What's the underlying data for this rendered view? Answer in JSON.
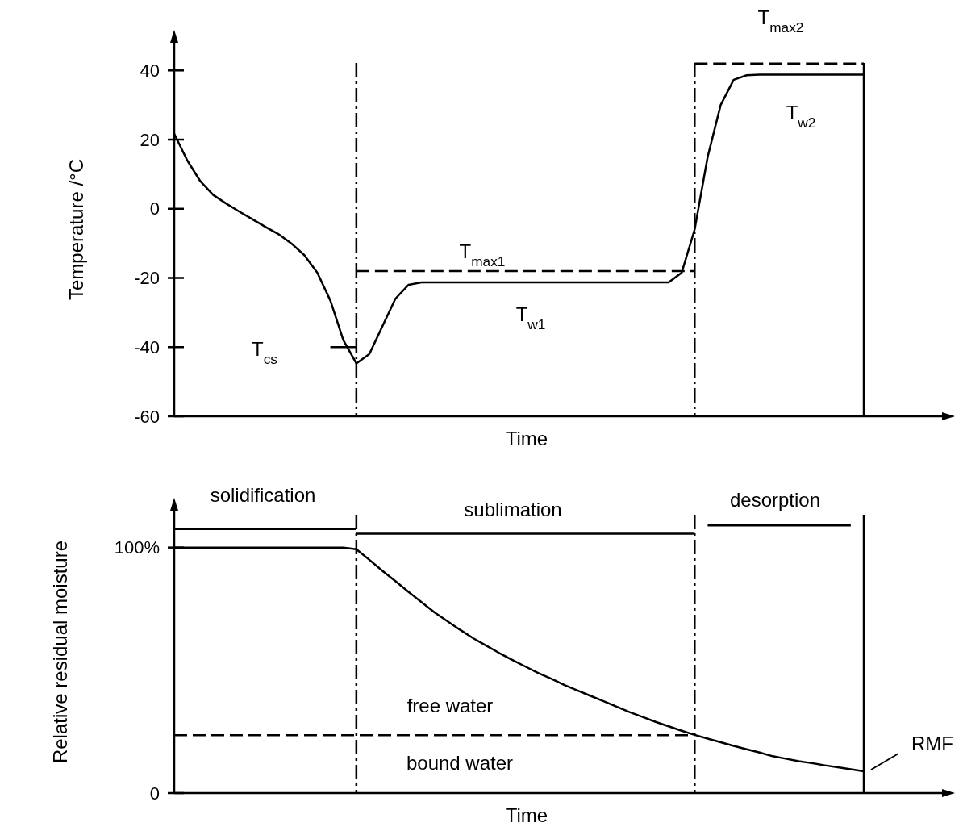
{
  "chart_data": [
    {
      "type": "line",
      "xlabel": "Time",
      "ylabel": "Temperature /°C",
      "ylim": [
        -60,
        48
      ],
      "yticks": [
        -60,
        -40,
        -20,
        0,
        20,
        40
      ],
      "tick_labels": "y",
      "categories": [
        null,
        null,
        null,
        null,
        null,
        null,
        null,
        null,
        null,
        null,
        null,
        null,
        null,
        null,
        null,
        null,
        null,
        null,
        null,
        null,
        null,
        null,
        null,
        null,
        null,
        null,
        null,
        null,
        null,
        null,
        null,
        null,
        null,
        null,
        null,
        null,
        null,
        null,
        null,
        null,
        null,
        null,
        null,
        null,
        null,
        null,
        null,
        null,
        null,
        null,
        null,
        null,
        null,
        null
      ],
      "series": [
        {
          "color": "#000000",
          "line_style": "solid",
          "values": [
            21.7,
            14,
            8,
            4,
            1.5,
            -0.8,
            -3,
            -5.2,
            -7.3,
            -10,
            -13.4,
            -18.5,
            -26.5,
            -38,
            -44.7,
            -42,
            -34,
            -26,
            -22,
            -21.3,
            -21.3,
            -21.3,
            -21.3,
            -21.3,
            -21.3,
            -21.3,
            -21.3,
            -21.3,
            -21.3,
            -21.3,
            -21.3,
            -21.3,
            -21.3,
            -21.3,
            -21.3,
            -21.3,
            -21.3,
            -21.3,
            -21.3,
            -18.5,
            -6,
            15,
            30,
            37.3,
            38.6,
            38.8,
            38.8,
            38.8,
            38.8,
            38.8,
            38.8,
            38.8,
            38.8,
            38.8
          ]
        },
        {
          "color": "#000000",
          "line_style": "dashed",
          "values": [
            null,
            null,
            null,
            null,
            null,
            null,
            null,
            null,
            null,
            null,
            null,
            null,
            null,
            null,
            -18,
            -18,
            -18,
            -18,
            -18,
            -18,
            -18,
            -18,
            -18,
            -18,
            -18,
            -18,
            -18,
            -18,
            -18,
            -18,
            -18,
            -18,
            -18,
            -18,
            -18,
            -18,
            -18,
            -18,
            -18,
            -18,
            -18,
            null,
            null,
            null,
            null,
            null,
            null,
            null,
            null,
            null,
            null,
            null,
            null,
            null
          ]
        },
        {
          "color": "#000000",
          "line_style": "dashed",
          "values": [
            null,
            null,
            null,
            null,
            null,
            null,
            null,
            null,
            null,
            null,
            null,
            null,
            null,
            null,
            null,
            null,
            null,
            null,
            null,
            null,
            null,
            null,
            null,
            null,
            null,
            null,
            null,
            null,
            null,
            null,
            null,
            null,
            null,
            null,
            null,
            null,
            null,
            null,
            null,
            null,
            42,
            42,
            42,
            42,
            42,
            42,
            42,
            42,
            42,
            42,
            42,
            42,
            42,
            42
          ]
        },
        {
          "color": "#000000",
          "line_style": "solid",
          "values": [
            null,
            null,
            null,
            null,
            null,
            null,
            null,
            null,
            null,
            null,
            null,
            null,
            -40,
            -40,
            -40,
            null,
            null,
            null,
            null,
            null,
            null,
            null,
            null,
            null,
            null,
            null,
            null,
            null,
            null,
            null,
            null,
            null,
            null,
            null,
            null,
            null,
            null,
            null,
            null,
            null,
            null,
            null,
            null,
            null,
            null,
            null,
            null,
            null,
            null,
            null,
            null,
            null,
            null,
            null
          ]
        }
      ],
      "annotations": [
        "T$_{max1}$",
        "T$_{w1}$",
        "T$_{cs}$",
        "T$_{max2}$",
        "T$_{w2}$"
      ]
    },
    {
      "type": "line",
      "xlabel": "Time",
      "ylabel": "Relative residual moisture",
      "ylim": [
        0,
        115
      ],
      "yticks": [
        {
          "value": 0,
          "label": "0"
        },
        {
          "value": 100,
          "label": "100%"
        }
      ],
      "tick_labels": "y",
      "categories": [
        null,
        null,
        null,
        null,
        null,
        null,
        null,
        null,
        null,
        null,
        null,
        null,
        null,
        null,
        null,
        null,
        null,
        null,
        null,
        null,
        null,
        null,
        null,
        null,
        null,
        null,
        null,
        null,
        null,
        null,
        null,
        null,
        null,
        null,
        null,
        null,
        null,
        null,
        null,
        null,
        null,
        null,
        null,
        null,
        null,
        null,
        null,
        null,
        null,
        null,
        null,
        null,
        null,
        null
      ],
      "series": [
        {
          "color": "#000000",
          "line_style": "solid",
          "values": [
            100,
            100,
            100,
            100,
            100,
            100,
            100,
            100,
            100,
            100,
            100,
            100,
            100,
            100,
            99.3,
            95,
            90.5,
            86.3,
            82,
            77.8,
            73.6,
            70,
            66.4,
            63,
            60,
            57,
            54.2,
            51.5,
            48.8,
            46.5,
            44,
            41.8,
            39.6,
            37.4,
            35.2,
            33,
            31,
            29,
            27.2,
            25.4,
            23.7,
            22.2,
            20.7,
            19.2,
            17.8,
            16.5,
            15,
            14,
            13,
            12.2,
            11.3,
            10.5,
            9.7,
            8.9
          ]
        },
        {
          "color": "#000000",
          "line_style": "dashed",
          "values": [
            23.6,
            23.6,
            23.6,
            23.6,
            23.6,
            23.6,
            23.6,
            23.6,
            23.6,
            23.6,
            23.6,
            23.6,
            23.6,
            23.6,
            23.6,
            23.6,
            23.6,
            23.6,
            23.6,
            23.6,
            23.6,
            23.6,
            23.6,
            23.6,
            23.6,
            23.6,
            23.6,
            23.6,
            23.6,
            23.6,
            23.6,
            23.6,
            23.6,
            23.6,
            23.6,
            23.6,
            23.6,
            23.6,
            23.6,
            23.6,
            23.6,
            null,
            null,
            null,
            null,
            null,
            null,
            null,
            null,
            null,
            null,
            null,
            null,
            null
          ]
        },
        {
          "color": "#000000",
          "line_style": "solid",
          "values": [
            107.5,
            107.5,
            107.5,
            107.5,
            107.5,
            107.5,
            107.5,
            107.5,
            107.5,
            107.5,
            107.5,
            107.5,
            107.5,
            107.5,
            107.5,
            null,
            null,
            null,
            null,
            null,
            null,
            null,
            null,
            null,
            null,
            null,
            null,
            null,
            null,
            null,
            null,
            null,
            null,
            null,
            null,
            null,
            null,
            null,
            null,
            null,
            null,
            null,
            null,
            null,
            null,
            null,
            null,
            null,
            null,
            null,
            null,
            null,
            null,
            null
          ]
        },
        {
          "color": "#000000",
          "line_style": "solid",
          "values": [
            null,
            null,
            null,
            null,
            null,
            null,
            null,
            null,
            null,
            null,
            null,
            null,
            null,
            null,
            105.6,
            105.6,
            105.6,
            105.6,
            105.6,
            105.6,
            105.6,
            105.6,
            105.6,
            105.6,
            105.6,
            105.6,
            105.6,
            105.6,
            105.6,
            105.6,
            105.6,
            105.6,
            105.6,
            105.6,
            105.6,
            105.6,
            105.6,
            105.6,
            105.6,
            105.6,
            105.6,
            null,
            null,
            null,
            null,
            null,
            null,
            null,
            null,
            null,
            null,
            null,
            null,
            null
          ]
        },
        {
          "color": "#000000",
          "line_style": "solid",
          "values": [
            null,
            null,
            null,
            null,
            null,
            null,
            null,
            null,
            null,
            null,
            null,
            null,
            null,
            null,
            null,
            null,
            null,
            null,
            null,
            null,
            null,
            null,
            null,
            null,
            null,
            null,
            null,
            null,
            null,
            null,
            null,
            null,
            null,
            null,
            null,
            null,
            null,
            null,
            null,
            null,
            null,
            109,
            109,
            109,
            109,
            109,
            109,
            109,
            109,
            109,
            109,
            109,
            109,
            null
          ]
        }
      ],
      "annotations": [
        "solidification",
        "sublimation",
        "desorption",
        "free water",
        "bound water",
        "RMF"
      ]
    }
  ]
}
